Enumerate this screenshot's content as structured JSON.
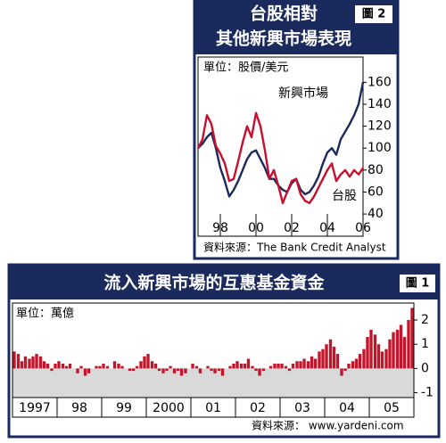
{
  "chart_data": [
    {
      "type": "line",
      "title": "台股相對",
      "subtitle": "其他新興市場表現",
      "figure_label": "圖 2",
      "unit_label": "單位：股價/美元",
      "source": "資料來源：The Bank Credit Analyst",
      "x": [
        1996.75,
        1997,
        1997.25,
        1997.5,
        1997.75,
        1998,
        1998.25,
        1998.5,
        1998.75,
        1999,
        1999.25,
        1999.5,
        1999.75,
        2000,
        2000.25,
        2000.5,
        2000.75,
        2001,
        2001.25,
        2001.5,
        2001.75,
        2002,
        2002.25,
        2002.5,
        2002.75,
        2003,
        2003.25,
        2003.5,
        2003.75,
        2004,
        2004.25,
        2004.5,
        2004.75,
        2005,
        2005.25,
        2005.5,
        2005.75,
        2006
      ],
      "series": [
        {
          "name": "新興市場",
          "color": "#1b2a5c",
          "values": [
            100,
            104,
            110,
            114,
            100,
            82,
            70,
            56,
            62,
            70,
            80,
            90,
            96,
            98,
            90,
            82,
            72,
            72,
            66,
            62,
            60,
            68,
            72,
            62,
            58,
            60,
            66,
            74,
            86,
            96,
            100,
            94,
            108,
            115,
            122,
            130,
            140,
            160
          ]
        },
        {
          "name": "台股",
          "color": "#c8102e",
          "values": [
            100,
            108,
            130,
            122,
            102,
            95,
            86,
            70,
            72,
            88,
            105,
            120,
            110,
            132,
            120,
            98,
            72,
            80,
            66,
            50,
            60,
            70,
            72,
            58,
            52,
            50,
            56,
            64,
            72,
            80,
            86,
            70,
            76,
            80,
            74,
            80,
            76,
            82
          ]
        }
      ],
      "xlim": [
        1996.75,
        2006
      ],
      "xticks": [
        {
          "value": 1998,
          "label": "98"
        },
        {
          "value": 2000,
          "label": "00"
        },
        {
          "value": 2002,
          "label": "02"
        },
        {
          "value": 2004,
          "label": "04"
        },
        {
          "value": 2006,
          "label": "06"
        }
      ],
      "ylim": [
        36,
        183
      ],
      "yticks": [
        40,
        60,
        80,
        100,
        120,
        140,
        160
      ]
    },
    {
      "type": "bar",
      "title": "流入新興市場的互惠基金資金",
      "figure_label": "圖 1",
      "unit_label": "單位：萬億",
      "source": "資料來源： www.yardeni.com",
      "color": "#c0152a",
      "x": [
        1997.04,
        1997.13,
        1997.21,
        1997.29,
        1997.38,
        1997.46,
        1997.54,
        1997.63,
        1997.71,
        1997.79,
        1997.88,
        1997.96,
        1998.04,
        1998.13,
        1998.21,
        1998.29,
        1998.38,
        1998.46,
        1998.54,
        1998.63,
        1998.71,
        1998.79,
        1998.88,
        1998.96,
        1999.04,
        1999.13,
        1999.21,
        1999.29,
        1999.38,
        1999.46,
        1999.54,
        1999.63,
        1999.71,
        1999.79,
        1999.88,
        1999.96,
        2000.04,
        2000.13,
        2000.21,
        2000.29,
        2000.38,
        2000.46,
        2000.54,
        2000.63,
        2000.71,
        2000.79,
        2000.88,
        2000.96,
        2001.04,
        2001.13,
        2001.21,
        2001.29,
        2001.38,
        2001.46,
        2001.54,
        2001.63,
        2001.71,
        2001.79,
        2001.88,
        2001.96,
        2002.04,
        2002.13,
        2002.21,
        2002.29,
        2002.38,
        2002.46,
        2002.54,
        2002.63,
        2002.71,
        2002.79,
        2002.88,
        2002.96,
        2003.04,
        2003.13,
        2003.21,
        2003.29,
        2003.38,
        2003.46,
        2003.54,
        2003.63,
        2003.71,
        2003.79,
        2003.88,
        2003.96,
        2004.04,
        2004.13,
        2004.21,
        2004.29,
        2004.38,
        2004.46,
        2004.54,
        2004.63,
        2004.71,
        2004.79,
        2004.88,
        2004.96,
        2005.04,
        2005.13,
        2005.21,
        2005.29,
        2005.38,
        2005.46,
        2005.54,
        2005.63,
        2005.71,
        2005.79,
        2005.88,
        2005.96
      ],
      "values": [
        0.7,
        0.6,
        0.3,
        0.5,
        0.4,
        0.5,
        0.6,
        0.5,
        0.3,
        0.2,
        -0.1,
        0.2,
        0.3,
        0.2,
        0.1,
        0.2,
        0.0,
        -0.2,
        0.1,
        -0.3,
        -0.2,
        0.0,
        0.1,
        0.1,
        0.2,
        0.1,
        0.0,
        0.3,
        0.2,
        0.1,
        0.0,
        -0.1,
        -0.1,
        0.1,
        0.3,
        0.5,
        0.6,
        0.3,
        0.2,
        -0.1,
        -0.2,
        -0.1,
        0.1,
        -0.2,
        -0.1,
        -0.3,
        -0.2,
        0.0,
        0.2,
        0.1,
        -0.2,
        0.0,
        0.1,
        -0.1,
        -0.2,
        -0.1,
        -0.3,
        0.0,
        0.1,
        0.2,
        0.3,
        0.2,
        0.2,
        0.4,
        0.1,
        -0.1,
        -0.3,
        -0.1,
        0.0,
        0.1,
        0.2,
        0.2,
        0.2,
        0.1,
        -0.1,
        0.2,
        0.3,
        0.3,
        0.4,
        0.3,
        0.5,
        0.4,
        0.7,
        0.8,
        1.0,
        1.2,
        0.9,
        0.6,
        -0.3,
        -0.1,
        0.2,
        0.3,
        0.4,
        0.6,
        0.8,
        1.3,
        1.6,
        1.4,
        1.0,
        0.7,
        0.8,
        1.2,
        1.5,
        1.6,
        1.8,
        1.3,
        2.0,
        2.5
      ],
      "xlim": [
        1997,
        2006
      ],
      "xticks": [
        {
          "value": 1997.5,
          "label": "1997"
        },
        {
          "value": 1998.5,
          "label": "98"
        },
        {
          "value": 1999.5,
          "label": "99"
        },
        {
          "value": 2000.5,
          "label": "2000"
        },
        {
          "value": 2001.5,
          "label": "01"
        },
        {
          "value": 2002.5,
          "label": "02"
        },
        {
          "value": 2003.5,
          "label": "03"
        },
        {
          "value": 2004.5,
          "label": "04"
        },
        {
          "value": 2005.5,
          "label": "05"
        }
      ],
      "ylim": [
        -1.2,
        2.7
      ],
      "yticks": [
        2,
        1,
        0,
        -1
      ]
    }
  ]
}
